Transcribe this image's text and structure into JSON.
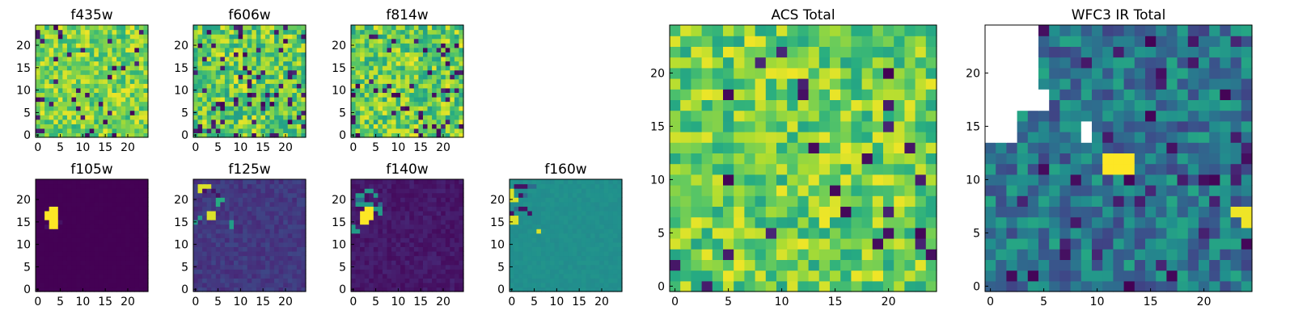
{
  "chart_data": [
    {
      "type": "heatmap",
      "title": "f435w",
      "colormap": "viridis",
      "xlim": [
        0,
        24
      ],
      "ylim": [
        0,
        24
      ],
      "xticks": [
        "0",
        "5",
        "10",
        "15",
        "20"
      ],
      "yticks": [
        "0",
        "5",
        "10",
        "15",
        "20"
      ],
      "appearance": "uniform random noise in green-yellow range with scattered dark purple pixels"
    },
    {
      "type": "heatmap",
      "title": "f606w",
      "colormap": "viridis",
      "xlim": [
        0,
        24
      ],
      "ylim": [
        0,
        24
      ],
      "xticks": [
        "0",
        "5",
        "10",
        "15",
        "20"
      ],
      "yticks": [
        "0",
        "5",
        "10",
        "15",
        "20"
      ],
      "appearance": "random noise in green-yellow range with more dark purple pixels"
    },
    {
      "type": "heatmap",
      "title": "f814w",
      "colormap": "viridis",
      "xlim": [
        0,
        24
      ],
      "ylim": [
        0,
        24
      ],
      "xticks": [
        "0",
        "5",
        "10",
        "15",
        "20"
      ],
      "yticks": [
        "0",
        "5",
        "10",
        "15",
        "20"
      ],
      "appearance": "random noise in green-yellow range with scattered dark pixels"
    },
    {
      "type": "heatmap",
      "title": "f105w",
      "colormap": "viridis",
      "xlim": [
        0,
        24
      ],
      "ylim": [
        0,
        24
      ],
      "xticks": [
        "0",
        "5",
        "10",
        "15",
        "20"
      ],
      "yticks": [
        "0",
        "5",
        "10",
        "15",
        "20"
      ],
      "appearance": "uniform dark purple with bright yellow blob near x=3-5, y=14-19"
    },
    {
      "type": "heatmap",
      "title": "f125w",
      "colormap": "viridis",
      "xlim": [
        0,
        24
      ],
      "ylim": [
        0,
        24
      ],
      "xticks": [
        "0",
        "5",
        "10",
        "15",
        "20"
      ],
      "yticks": [
        "0",
        "5",
        "10",
        "15",
        "20"
      ],
      "appearance": "purple-blue background with yellow and green spots in upper-left"
    },
    {
      "type": "heatmap",
      "title": "f140w",
      "colormap": "viridis",
      "xlim": [
        0,
        24
      ],
      "ylim": [
        0,
        24
      ],
      "xticks": [
        "0",
        "5",
        "10",
        "15",
        "20"
      ],
      "yticks": [
        "0",
        "5",
        "10",
        "15",
        "20"
      ],
      "appearance": "dark purple background with yellow blob and green-teal spots in upper-left"
    },
    {
      "type": "heatmap",
      "title": "f160w",
      "colormap": "viridis",
      "xlim": [
        0,
        24
      ],
      "ylim": [
        0,
        24
      ],
      "xticks": [
        "0",
        "5",
        "10",
        "15",
        "20"
      ],
      "yticks": [
        "0",
        "5",
        "10",
        "15",
        "20"
      ],
      "appearance": "uniform teal background with yellow spots and dark pixels in upper-left"
    },
    {
      "type": "heatmap",
      "title": "ACS Total",
      "colormap": "viridis",
      "xlim": [
        0,
        24
      ],
      "ylim": [
        0,
        24
      ],
      "xticks": [
        "0",
        "5",
        "10",
        "15",
        "20"
      ],
      "yticks": [
        "0",
        "5",
        "10",
        "15",
        "20"
      ],
      "appearance": "green-yellow noise with scattered dark purple pixels"
    },
    {
      "type": "heatmap",
      "title": "WFC3 IR Total",
      "colormap": "viridis",
      "xlim": [
        0,
        24
      ],
      "ylim": [
        0,
        24
      ],
      "xticks": [
        "0",
        "5",
        "10",
        "15",
        "20"
      ],
      "yticks": [
        "0",
        "5",
        "10",
        "15",
        "20"
      ],
      "appearance": "blue-teal noise, white (masked) region in upper-left, yellow blob near x=11-13, y=11-13 and right edge near y=6-8"
    }
  ]
}
